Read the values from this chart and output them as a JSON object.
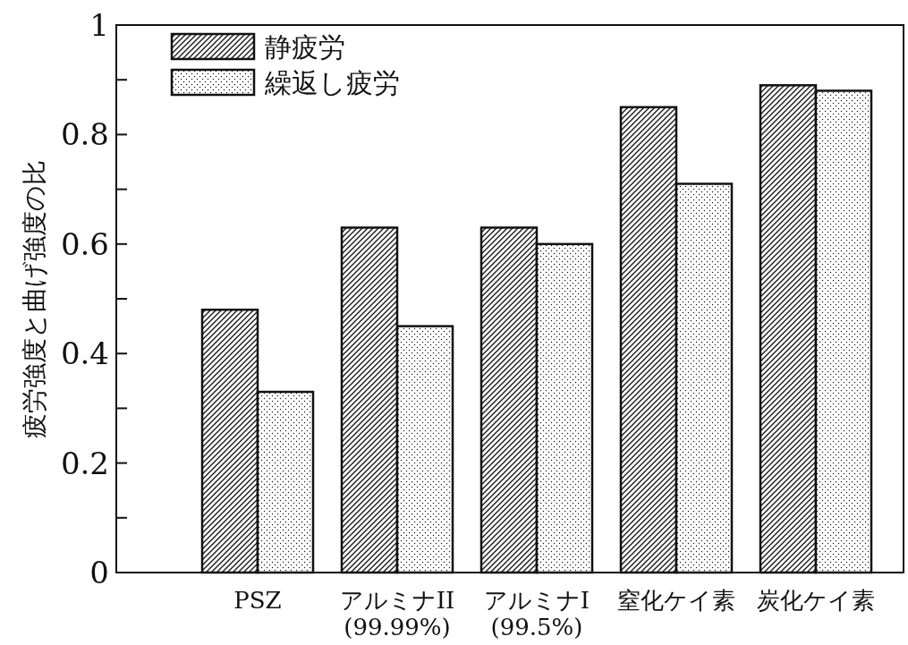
{
  "chart_data": {
    "type": "bar",
    "ylabel": "疲労強度と曲げ強度の比",
    "categories": [
      "PSZ",
      "アルミナII\n(99.99%)",
      "アルミナI\n(99.5%)",
      "窒化ケイ素",
      "炭化ケイ素"
    ],
    "series": [
      {
        "name": "静疲労",
        "color": "#111111",
        "values": [
          0.48,
          0.63,
          0.63,
          0.85,
          0.89
        ]
      },
      {
        "name": "繰返し疲労",
        "color": "#111111",
        "values": [
          0.33,
          0.45,
          0.6,
          0.71,
          0.88
        ]
      }
    ],
    "ylim": [
      0,
      1
    ],
    "yticks": [
      0,
      {
        "value": 0.1,
        "label": null
      },
      0.2,
      {
        "value": 0.3,
        "label": null
      },
      0.4,
      {
        "value": 0.5,
        "label": null
      },
      0.6,
      {
        "value": 0.7,
        "label": null
      },
      0.8,
      {
        "value": 0.9,
        "label": null
      },
      1
    ],
    "grid": false,
    "legend": "top left"
  }
}
